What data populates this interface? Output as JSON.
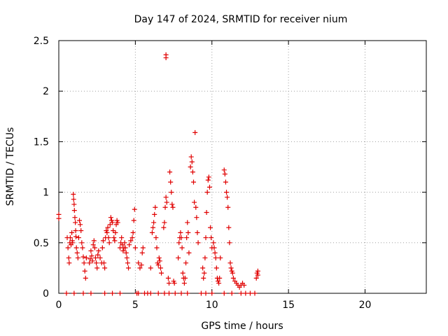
{
  "chart_data": {
    "type": "scatter",
    "title": "Day 147 of 2024, SRMTID for receiver nium",
    "xlabel": "GPS time / hours",
    "ylabel": "SRMTID / TECUs",
    "xlim": [
      0,
      24
    ],
    "ylim": [
      0,
      2.5
    ],
    "xticks": [
      0,
      5,
      10,
      15,
      20
    ],
    "yticks": [
      0,
      0.5,
      1,
      1.5,
      2,
      2.5
    ],
    "xtick_labels": [
      "0",
      "5",
      "10",
      "15",
      "20"
    ],
    "ytick_labels": [
      "0",
      "0.5",
      "1",
      "1.5",
      "2",
      "2.5"
    ],
    "grid": true,
    "marker": "+",
    "color": "#e00000",
    "series": [
      {
        "name": "SRMTID",
        "points": [
          [
            0.0,
            0.78
          ],
          [
            0.0,
            0.74
          ],
          [
            0.55,
            0.55
          ],
          [
            0.6,
            0.45
          ],
          [
            0.65,
            0.35
          ],
          [
            0.68,
            0.3
          ],
          [
            0.72,
            0.5
          ],
          [
            0.75,
            0.55
          ],
          [
            0.8,
            0.48
          ],
          [
            0.85,
            0.6
          ],
          [
            0.88,
            0.52
          ],
          [
            0.9,
            0.5
          ],
          [
            0.95,
            0.98
          ],
          [
            0.97,
            0.93
          ],
          [
            1.0,
            0.88
          ],
          [
            1.02,
            0.82
          ],
          [
            1.05,
            0.75
          ],
          [
            1.08,
            0.7
          ],
          [
            1.1,
            0.62
          ],
          [
            1.12,
            0.56
          ],
          [
            1.15,
            0.45
          ],
          [
            1.2,
            0.4
          ],
          [
            1.25,
            0.35
          ],
          [
            1.3,
            0.55
          ],
          [
            1.35,
            0.72
          ],
          [
            1.4,
            0.68
          ],
          [
            1.45,
            0.62
          ],
          [
            1.5,
            0.5
          ],
          [
            1.55,
            0.45
          ],
          [
            1.6,
            0.36
          ],
          [
            1.65,
            0.3
          ],
          [
            1.7,
            0.22
          ],
          [
            1.75,
            0.15
          ],
          [
            1.8,
            0.35
          ],
          [
            2.0,
            0.3
          ],
          [
            2.05,
            0.34
          ],
          [
            2.1,
            0.42
          ],
          [
            2.15,
            0.37
          ],
          [
            2.2,
            0.32
          ],
          [
            2.25,
            0.48
          ],
          [
            2.3,
            0.52
          ],
          [
            2.35,
            0.45
          ],
          [
            2.4,
            0.35
          ],
          [
            2.45,
            0.3
          ],
          [
            2.5,
            0.25
          ],
          [
            2.55,
            0.38
          ],
          [
            2.6,
            0.42
          ],
          [
            2.7,
            0.35
          ],
          [
            2.8,
            0.3
          ],
          [
            2.85,
            0.45
          ],
          [
            2.9,
            0.52
          ],
          [
            2.95,
            0.3
          ],
          [
            3.0,
            0.25
          ],
          [
            3.05,
            0.55
          ],
          [
            3.1,
            0.62
          ],
          [
            3.15,
            0.6
          ],
          [
            3.2,
            0.65
          ],
          [
            3.25,
            0.55
          ],
          [
            3.3,
            0.5
          ],
          [
            3.35,
            0.68
          ],
          [
            3.4,
            0.75
          ],
          [
            3.45,
            0.72
          ],
          [
            3.5,
            0.7
          ],
          [
            3.55,
            0.62
          ],
          [
            3.6,
            0.55
          ],
          [
            3.65,
            0.52
          ],
          [
            3.7,
            0.6
          ],
          [
            3.75,
            0.68
          ],
          [
            3.8,
            0.72
          ],
          [
            3.85,
            0.7
          ],
          [
            4.0,
            0.45
          ],
          [
            4.05,
            0.5
          ],
          [
            4.1,
            0.55
          ],
          [
            4.15,
            0.48
          ],
          [
            4.2,
            0.42
          ],
          [
            4.25,
            0.45
          ],
          [
            4.3,
            0.5
          ],
          [
            4.35,
            0.45
          ],
          [
            4.4,
            0.4
          ],
          [
            4.45,
            0.35
          ],
          [
            4.5,
            0.3
          ],
          [
            4.55,
            0.25
          ],
          [
            4.6,
            0.48
          ],
          [
            4.7,
            0.52
          ],
          [
            4.8,
            0.55
          ],
          [
            4.85,
            0.6
          ],
          [
            4.9,
            0.72
          ],
          [
            4.95,
            0.83
          ],
          [
            5.0,
            0.45
          ],
          [
            5.2,
            0.3
          ],
          [
            5.3,
            0.25
          ],
          [
            5.4,
            0.28
          ],
          [
            5.45,
            0.4
          ],
          [
            5.5,
            0.45
          ],
          [
            6.0,
            0.25
          ],
          [
            6.1,
            0.6
          ],
          [
            6.15,
            0.65
          ],
          [
            6.2,
            0.7
          ],
          [
            6.25,
            0.78
          ],
          [
            6.3,
            0.85
          ],
          [
            6.35,
            0.55
          ],
          [
            6.4,
            0.45
          ],
          [
            6.45,
            0.3
          ],
          [
            6.5,
            0.28
          ],
          [
            6.55,
            0.35
          ],
          [
            6.6,
            0.32
          ],
          [
            6.65,
            0.25
          ],
          [
            6.7,
            0.2
          ],
          [
            6.85,
            0.65
          ],
          [
            6.9,
            0.7
          ],
          [
            6.95,
            0.85
          ],
          [
            7.0,
            0.95
          ],
          [
            7.0,
            2.36
          ],
          [
            7.0,
            2.33
          ],
          [
            7.05,
            0.9
          ],
          [
            7.15,
            0.15
          ],
          [
            7.2,
            0.1
          ],
          [
            7.25,
            1.2
          ],
          [
            7.3,
            1.1
          ],
          [
            7.35,
            1.0
          ],
          [
            7.4,
            0.88
          ],
          [
            7.45,
            0.85
          ],
          [
            7.5,
            0.12
          ],
          [
            7.55,
            0.1
          ],
          [
            7.8,
            0.35
          ],
          [
            7.85,
            0.5
          ],
          [
            7.9,
            0.55
          ],
          [
            7.95,
            0.6
          ],
          [
            8.0,
            0.55
          ],
          [
            8.05,
            0.45
          ],
          [
            8.1,
            0.2
          ],
          [
            8.15,
            0.15
          ],
          [
            8.2,
            0.1
          ],
          [
            8.25,
            0.15
          ],
          [
            8.3,
            0.3
          ],
          [
            8.35,
            0.55
          ],
          [
            8.4,
            0.7
          ],
          [
            8.45,
            0.6
          ],
          [
            8.5,
            0.4
          ],
          [
            8.6,
            1.25
          ],
          [
            8.65,
            1.35
          ],
          [
            8.7,
            1.3
          ],
          [
            8.75,
            1.2
          ],
          [
            8.8,
            1.1
          ],
          [
            8.85,
            0.9
          ],
          [
            8.9,
            1.59
          ],
          [
            8.95,
            0.85
          ],
          [
            9.0,
            0.75
          ],
          [
            9.05,
            0.6
          ],
          [
            9.1,
            0.5
          ],
          [
            9.4,
            0.25
          ],
          [
            9.45,
            0.15
          ],
          [
            9.5,
            0.2
          ],
          [
            9.55,
            0.35
          ],
          [
            9.6,
            0.55
          ],
          [
            9.65,
            0.8
          ],
          [
            9.7,
            1.0
          ],
          [
            9.75,
            1.12
          ],
          [
            9.8,
            1.15
          ],
          [
            9.85,
            1.05
          ],
          [
            9.9,
            0.65
          ],
          [
            9.95,
            0.55
          ],
          [
            10.0,
            0.45
          ],
          [
            10.1,
            0.5
          ],
          [
            10.15,
            0.45
          ],
          [
            10.2,
            0.4
          ],
          [
            10.25,
            0.35
          ],
          [
            10.3,
            0.25
          ],
          [
            10.35,
            0.15
          ],
          [
            10.4,
            0.12
          ],
          [
            10.45,
            0.1
          ],
          [
            10.5,
            0.15
          ],
          [
            10.55,
            0.35
          ],
          [
            10.8,
            1.22
          ],
          [
            10.85,
            1.18
          ],
          [
            10.9,
            1.1
          ],
          [
            10.95,
            1.0
          ],
          [
            11.0,
            0.95
          ],
          [
            11.05,
            0.85
          ],
          [
            11.1,
            0.65
          ],
          [
            11.15,
            0.5
          ],
          [
            11.2,
            0.3
          ],
          [
            11.25,
            0.25
          ],
          [
            11.3,
            0.22
          ],
          [
            11.35,
            0.2
          ],
          [
            11.4,
            0.15
          ],
          [
            11.5,
            0.12
          ],
          [
            11.6,
            0.1
          ],
          [
            11.7,
            0.08
          ],
          [
            11.8,
            0.06
          ],
          [
            11.9,
            0.08
          ],
          [
            12.0,
            0.1
          ],
          [
            12.1,
            0.08
          ],
          [
            12.9,
            0.15
          ],
          [
            12.95,
            0.2
          ],
          [
            13.0,
            0.22
          ],
          [
            13.0,
            0.18
          ],
          [
            0.5,
            0.0
          ],
          [
            1.0,
            0.0
          ],
          [
            1.6,
            0.0
          ],
          [
            2.1,
            0.0
          ],
          [
            3.0,
            0.0
          ],
          [
            3.5,
            0.0
          ],
          [
            4.0,
            0.0
          ],
          [
            5.1,
            0.0
          ],
          [
            5.2,
            0.0
          ],
          [
            5.6,
            0.0
          ],
          [
            5.8,
            0.0
          ],
          [
            6.0,
            0.0
          ],
          [
            6.5,
            0.0
          ],
          [
            6.9,
            0.0
          ],
          [
            7.2,
            0.0
          ],
          [
            7.6,
            0.0
          ],
          [
            8.0,
            0.0
          ],
          [
            8.4,
            0.0
          ],
          [
            9.3,
            0.0
          ],
          [
            9.6,
            0.0
          ],
          [
            10.0,
            0.0
          ],
          [
            10.8,
            0.0
          ],
          [
            11.3,
            0.0
          ],
          [
            11.9,
            0.0
          ],
          [
            12.2,
            0.0
          ],
          [
            12.5,
            0.0
          ],
          [
            12.8,
            0.0
          ]
        ]
      }
    ]
  }
}
